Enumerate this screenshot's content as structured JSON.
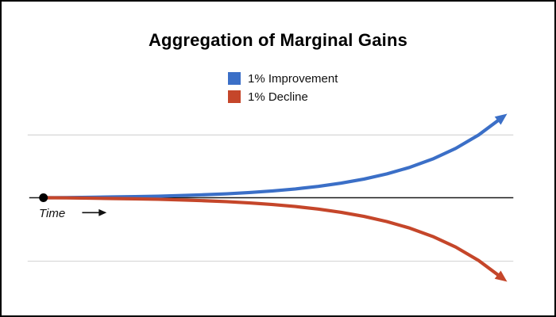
{
  "title": "Aggregation of Marginal Gains",
  "legend": {
    "items": [
      {
        "label": "1% Improvement",
        "color": "#3b6fc7"
      },
      {
        "label": "1% Decline",
        "color": "#c5462a"
      }
    ]
  },
  "time_axis_label": "Time",
  "colors": {
    "background": "#ffffff",
    "border": "#000000",
    "gridline": "#cbcbcb",
    "axis_line": "#1a1a1a",
    "start_marker": "#000000",
    "time_arrow": "#111111"
  },
  "chart_data": {
    "type": "line",
    "title": "Aggregation of Marginal Gains",
    "xlabel": "Time",
    "ylabel": "",
    "x": [
      0,
      5,
      10,
      15,
      20,
      25,
      30,
      35,
      40,
      45,
      50,
      55,
      60,
      65,
      70,
      75,
      80,
      85,
      90,
      95,
      100
    ],
    "series": [
      {
        "name": "1% Improvement",
        "color": "#3b6fc7",
        "values": [
          0,
          0.003,
          0.007,
          0.012,
          0.018,
          0.025,
          0.035,
          0.047,
          0.063,
          0.083,
          0.108,
          0.14,
          0.181,
          0.232,
          0.297,
          0.38,
          0.485,
          0.618,
          0.786,
          1.0,
          1.271
        ]
      },
      {
        "name": "1% Decline",
        "color": "#c5462a",
        "values": [
          0,
          -0.003,
          -0.007,
          -0.012,
          -0.018,
          -0.025,
          -0.035,
          -0.047,
          -0.063,
          -0.083,
          -0.108,
          -0.14,
          -0.181,
          -0.232,
          -0.297,
          -0.38,
          -0.485,
          -0.618,
          -0.786,
          -1.0,
          -1.271
        ]
      }
    ],
    "xlim": [
      0,
      100
    ],
    "ylim": [
      -1.45,
      1.45
    ],
    "gridlines_y": [
      1.0,
      -1.0
    ],
    "baseline_y": 0,
    "x_tick_labels": [],
    "y_tick_labels": [],
    "legend_position": "top-center",
    "start_marker": {
      "x": 0,
      "y": 0
    },
    "arrow_ends": true
  }
}
